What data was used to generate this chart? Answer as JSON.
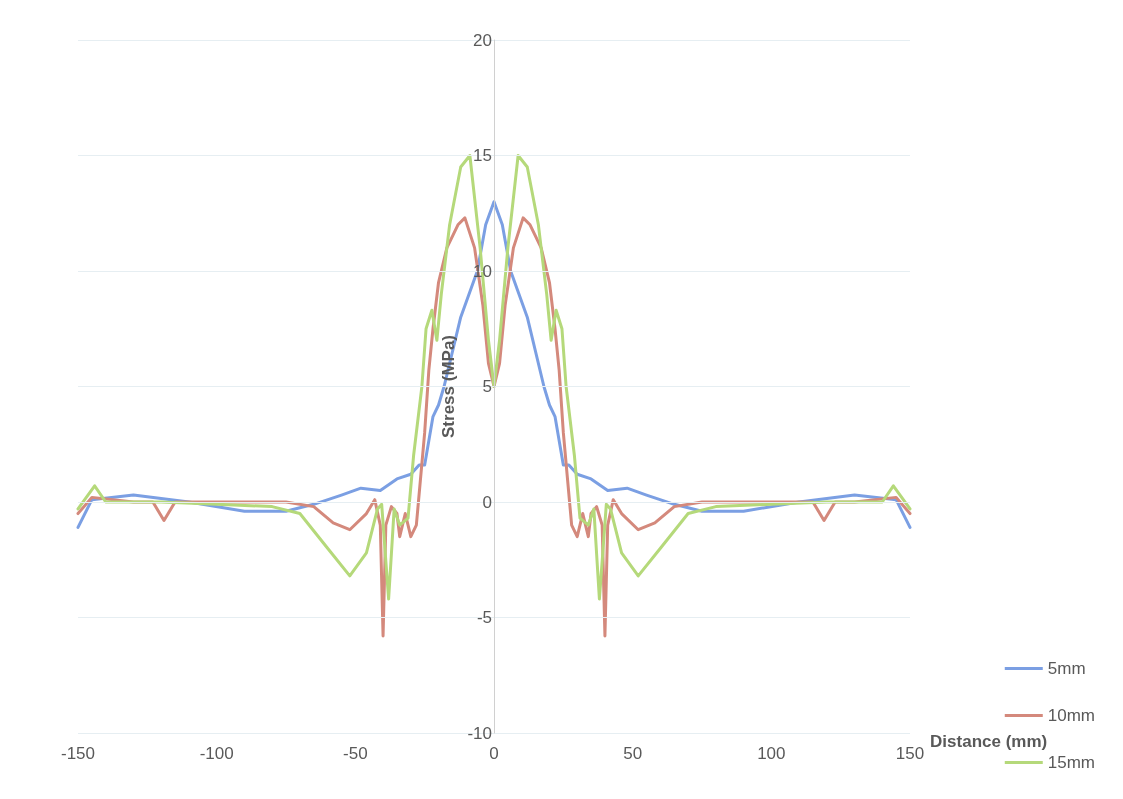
{
  "chart_data": {
    "type": "line",
    "xlabel": "Distance (mm)",
    "ylabel": "Stress (MPa)",
    "xlim": [
      -150,
      150
    ],
    "ylim": [
      -10,
      20
    ],
    "xticks": [
      -150,
      -100,
      -50,
      0,
      50,
      100,
      150
    ],
    "yticks": [
      -10,
      -5,
      0,
      5,
      10,
      15,
      20
    ],
    "grid": "y",
    "legend": "bottom right",
    "marker": "none",
    "series": [
      {
        "name": "5mm",
        "color": "#7b9fe3",
        "x": [
          -150,
          -145,
          -130,
          -110,
          -90,
          -75,
          -65,
          -55,
          -48,
          -41,
          -35,
          -30,
          -27,
          -25,
          -22,
          -20,
          -18,
          -12,
          -6,
          -3,
          0,
          3,
          6,
          12,
          18,
          20,
          22,
          25,
          27,
          30,
          35,
          41,
          48,
          55,
          65,
          75,
          90,
          110,
          130,
          145,
          150
        ],
        "values": [
          -1.1,
          0.1,
          0.3,
          0,
          -0.4,
          -0.4,
          -0.1,
          0.3,
          0.6,
          0.5,
          1.0,
          1.2,
          1.6,
          1.6,
          3.7,
          4.2,
          5,
          8,
          10,
          12,
          13,
          12,
          10,
          8,
          5,
          4.2,
          3.7,
          1.6,
          1.6,
          1.2,
          1.0,
          0.5,
          0.6,
          0.3,
          -0.1,
          -0.4,
          -0.4,
          0,
          0.3,
          0.1,
          -1.1
        ]
      },
      {
        "name": "10mm",
        "color": "#d4897c",
        "x": [
          -150,
          -145,
          -130,
          -123,
          -119,
          -115,
          -100,
          -75,
          -65,
          -58,
          -52,
          -46,
          -43,
          -41,
          -40,
          -39,
          -37,
          -35,
          -34,
          -32,
          -30,
          -28,
          -25,
          -23.5,
          -22,
          -20,
          -17,
          -13,
          -10.5,
          -7,
          -4,
          -2,
          0,
          2,
          4,
          7,
          10.5,
          13,
          17,
          20,
          22,
          23.5,
          25,
          28,
          30,
          32,
          34,
          35,
          37,
          39,
          40,
          41,
          43,
          46,
          52,
          58,
          65,
          75,
          100,
          115,
          119,
          123,
          130,
          145,
          150
        ],
        "values": [
          -0.5,
          0.2,
          0,
          0,
          -0.8,
          0,
          0,
          0,
          -0.2,
          -0.9,
          -1.2,
          -0.5,
          0.1,
          -1,
          -5.8,
          -1,
          -0.2,
          -0.5,
          -1.5,
          -0.5,
          -1.5,
          -1,
          3,
          5.7,
          7.5,
          9.5,
          11,
          12,
          12.3,
          11,
          8.5,
          6,
          5,
          6,
          8.5,
          11,
          12.3,
          12,
          11,
          9.5,
          7.5,
          5.7,
          3,
          -1,
          -1.5,
          -0.5,
          -1.5,
          -0.5,
          -0.2,
          -1,
          -5.8,
          -1,
          0.1,
          -0.5,
          -1.2,
          -0.9,
          -0.2,
          0,
          0,
          0,
          -0.8,
          0,
          0,
          0.2,
          -0.5
        ]
      },
      {
        "name": "15mm",
        "color": "#b5d97a",
        "x": [
          -150,
          -144,
          -140,
          -120,
          -100,
          -80,
          -70,
          -60,
          -52,
          -46,
          -42,
          -40.5,
          -38,
          -36,
          -34,
          -31,
          -29,
          -26,
          -24.5,
          -22.4,
          -20.6,
          -19,
          -16,
          -12,
          -8.7,
          -5,
          -2,
          0,
          2,
          5,
          8.7,
          12,
          16,
          19,
          20.6,
          22.4,
          24.5,
          26,
          29,
          31,
          34,
          36,
          38,
          40.5,
          42,
          46,
          52,
          60,
          70,
          80,
          100,
          120,
          140,
          144,
          150
        ],
        "values": [
          -0.3,
          0.7,
          0,
          0,
          -0.1,
          -0.2,
          -0.5,
          -2,
          -3.2,
          -2.2,
          -0.3,
          -0.1,
          -4.2,
          -0.3,
          -1,
          -0.7,
          2,
          5,
          7.5,
          8.3,
          7,
          9,
          12,
          14.5,
          15,
          11,
          7,
          5,
          7,
          11,
          15,
          14.5,
          12,
          9,
          7,
          8.3,
          7.5,
          5,
          2,
          -0.7,
          -1,
          -0.3,
          -4.2,
          -0.1,
          -0.3,
          -2.2,
          -3.2,
          -2,
          -0.5,
          -0.2,
          -0.1,
          0,
          0,
          0.7,
          -0.3
        ]
      }
    ]
  }
}
